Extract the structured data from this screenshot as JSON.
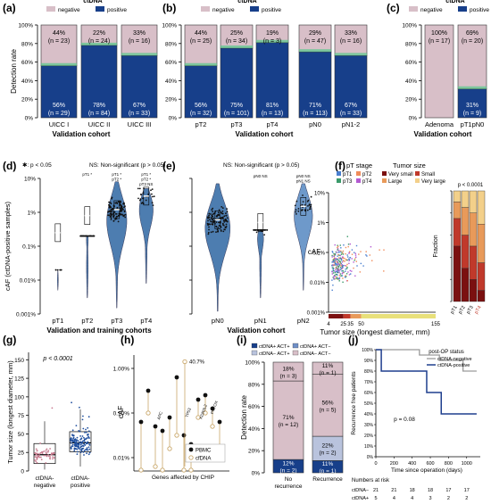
{
  "colors": {
    "negative": "#d8bfc8",
    "positive": "#173f8a",
    "green": "#58c98c",
    "violin": "#3a6fa8",
    "violin_light": "#5f8fc5",
    "red_pt4": "#c0392b"
  },
  "legend": {
    "title": "ctDNA",
    "negative": "negative",
    "positive": "positive"
  },
  "chart_data": [
    {
      "panel": "(a)",
      "type": "bar",
      "stacked": true,
      "legend_title": "ctDNA",
      "series_names": [
        "negative",
        "positive"
      ],
      "ylabel": "Detection rate",
      "xlabel": "Validation cohort",
      "categories": [
        "UICC I",
        "UICC II",
        "UICC III"
      ],
      "neg_pct": [
        "44%",
        "22%",
        "33%"
      ],
      "neg_n": [
        "(n = 23)",
        "(n = 24)",
        "(n = 16)"
      ],
      "pos_pct": [
        "56%",
        "78%",
        "67%"
      ],
      "pos_n": [
        "(n = 29)",
        "(n = 84)",
        "(n = 33)"
      ],
      "positive": [
        0.56,
        0.78,
        0.67
      ]
    },
    {
      "panel": "(b)",
      "type": "bar",
      "stacked": true,
      "legend_title": "ctDNA",
      "xlabel": "Validation cohort",
      "categories": [
        "pT2",
        "pT3",
        "pT4",
        "pN0",
        "pN1-2"
      ],
      "neg_pct": [
        "44%",
        "25%",
        "19%",
        "29%",
        "33%"
      ],
      "neg_n": [
        "(n = 25)",
        "(n = 34)",
        "(n = 3)",
        "(n = 47)",
        "(n = 16)"
      ],
      "pos_pct": [
        "56%",
        "75%",
        "81%",
        "71%",
        "67%"
      ],
      "pos_n": [
        "(n = 32)",
        "(n = 101)",
        "(n = 13)",
        "(n = 113)",
        "(n = 33)"
      ],
      "positive": [
        0.56,
        0.75,
        0.81,
        0.71,
        0.67
      ]
    },
    {
      "panel": "(c)",
      "type": "bar",
      "stacked": true,
      "legend_title": "ctDNA",
      "xlabel": "Validation cohort",
      "categories": [
        "Adenoma",
        "pT1pN0"
      ],
      "neg_pct": [
        "100%",
        "69%"
      ],
      "neg_n": [
        "(n = 17)",
        "(n = 20)"
      ],
      "pos_pct": [
        "",
        "31%"
      ],
      "pos_n": [
        "",
        "(n = 9)"
      ],
      "positive": [
        0.0,
        0.31
      ]
    },
    {
      "panel": "(d)",
      "type": "violin",
      "ylabel": "cAF (ctDNA-positive samples)",
      "xlabel": "Validation and training cohorts",
      "categories": [
        "pT1",
        "pT2",
        "pT3",
        "pT4"
      ],
      "yticks": [
        "0.001%",
        "0.01%",
        "0.1%",
        "1%",
        "10%"
      ],
      "yscale": "log",
      "note_sig": "✱: p < 0.05",
      "note_ns": "NS: Non-significant (p > 0.05)",
      "medians": [
        0.0025,
        0.008,
        0.012,
        0.03
      ],
      "sig_pt2": [
        "pT1 *"
      ],
      "sig_pt3": [
        "pT1 *",
        "pT2 *"
      ],
      "sig_pt4": [
        "pT1 *",
        "pT2 *",
        "pT3 NS"
      ]
    },
    {
      "panel": "(e)",
      "type": "violin",
      "xlabel": "Validation cohort",
      "categories": [
        "pN0",
        "pN1",
        "pN2"
      ],
      "yscale": "log",
      "note_ns": "NS: Non-significant (p > 0.05)",
      "sig_pn1": [
        "pN0 NS"
      ],
      "sig_pn2": [
        "pN0 NS",
        "pN1 NS"
      ],
      "medians": [
        0.006,
        0.005,
        0.015
      ]
    },
    {
      "panel": "(f)",
      "type": "scatter",
      "legend_stage_title": "pT stage",
      "legend_stage": [
        "pT1",
        "pT2",
        "pT3",
        "pT4"
      ],
      "legend_size_title": "Tumor size",
      "legend_size": [
        "Very small",
        "Small",
        "Large",
        "Very large"
      ],
      "ylabel": "cAF",
      "xlabel": "Tumor size (longest diameter, mm)",
      "xticks": [
        "4",
        "25",
        "35",
        "50",
        "155"
      ],
      "yticks": [
        "0.001%",
        "0.01%",
        "0.1%",
        "1%",
        "10%"
      ],
      "bar_ylabel": "Fraction",
      "bar_yticks": [
        "0",
        "0.2",
        "0.4",
        "0.6",
        "0.8",
        "1.0"
      ],
      "bar_categories": [
        "pT1",
        "pT2",
        "pT3",
        "pT4"
      ],
      "p_text": "p < 0.0001"
    },
    {
      "panel": "(g)",
      "type": "box",
      "ylabel": "Tumor size (longest diameter, mm)",
      "categories": [
        "ctDNA-\nnegative",
        "ctDNA-\npositive"
      ],
      "yticks": [
        "0",
        "25",
        "50",
        "75",
        "100",
        "125",
        "150"
      ],
      "medians": [
        22,
        38
      ],
      "p_text": "p < 0.0001"
    },
    {
      "panel": "(h)",
      "type": "scatter",
      "ylabel": "cAF",
      "xlabel": "Genes affected by CHIP",
      "yticks": [
        "0.01%",
        "0.10%",
        "1.00%"
      ],
      "genes": [
        "APC",
        "TP53",
        "KDR/IL2",
        "PNTOX"
      ],
      "annotation": "40.7%",
      "legend": [
        "PBMC",
        "cfDNA"
      ]
    },
    {
      "panel": "(i)",
      "type": "bar",
      "stacked": true,
      "ylabel": "Detection rate",
      "categories": [
        "No\nrecurrence",
        "Recurrence"
      ],
      "legend": [
        "ctDNA+ ACT+",
        "ctDNA+ ACT−",
        "ctDNA− ACT+",
        "ctDNA− ACT−"
      ],
      "segments": [
        [
          "12%",
          "(n = 2)"
        ],
        [
          "71%",
          "(n = 12)"
        ],
        [
          "18%",
          "(n = 3)"
        ]
      ],
      "segments_recurrence": [
        [
          "11%",
          "(n = 1)"
        ],
        [
          "22%",
          "(n = 2)"
        ],
        [
          "56%",
          "(n = 5)"
        ],
        [
          "11%",
          "(n = 1)"
        ]
      ]
    },
    {
      "panel": "(j)",
      "type": "line",
      "ylabel": "Recurrence free patients",
      "xlabel": "Time since operation (days)",
      "xticks": [
        "0",
        "200",
        "400",
        "600",
        "800",
        "1000"
      ],
      "yticks": [
        "0%",
        "10%",
        "20%",
        "30%",
        "40%",
        "50%",
        "60%",
        "70%",
        "80%",
        "90%",
        "100%"
      ],
      "legend_title": "post-OP status",
      "series": [
        "ctDNA-negative",
        "ctDNA-positive"
      ],
      "p_text": "p = 0.08",
      "risk_title": "Numbers at risk",
      "risk_rows": [
        {
          "label": "ctDNA−",
          "values": [
            "21",
            "21",
            "18",
            "18",
            "17",
            "17"
          ]
        },
        {
          "label": "ctDNA+",
          "values": [
            "5",
            "4",
            "4",
            "3",
            "2",
            "2"
          ]
        }
      ]
    }
  ]
}
